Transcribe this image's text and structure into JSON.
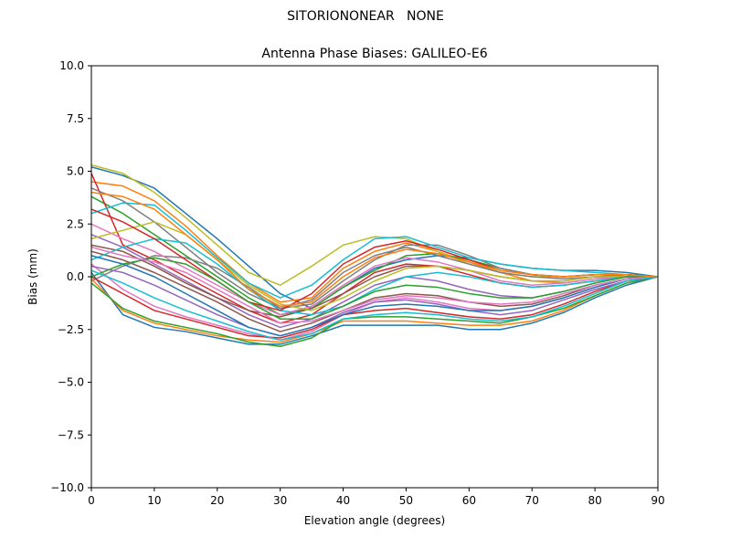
{
  "figure": {
    "suptitle": "SITORIONONEAR   NONE"
  },
  "chart_data": {
    "type": "line",
    "title": "Antenna Phase Biases: GALILEO-E6",
    "xlabel": "Elevation angle (degrees)",
    "ylabel": "Bias (mm)",
    "xlim": [
      0,
      90
    ],
    "ylim": [
      -10,
      10
    ],
    "xticks": [
      "0",
      "10",
      "20",
      "30",
      "40",
      "50",
      "60",
      "70",
      "80",
      "90"
    ],
    "yticks": [
      "10.0",
      "7.5",
      "5.0",
      "2.5",
      "0.0",
      "−2.5",
      "−5.0",
      "−7.5",
      "−10.0"
    ],
    "grid": false,
    "legend": "none",
    "x": [
      0,
      5,
      10,
      15,
      20,
      25,
      30,
      35,
      40,
      45,
      50,
      55,
      60,
      65,
      70,
      75,
      80,
      85,
      90
    ],
    "series": [
      {
        "color": "#1f77b4",
        "values": [
          5.2,
          4.8,
          4.2,
          3.0,
          1.8,
          0.5,
          -0.8,
          -1.5,
          -0.5,
          0.4,
          0.8,
          1.0,
          0.9,
          0.6,
          0.4,
          0.3,
          0.3,
          0.2,
          0.0
        ]
      },
      {
        "color": "#ff7f0e",
        "values": [
          4.5,
          4.3,
          3.6,
          2.4,
          1.0,
          -0.3,
          -1.2,
          -1.0,
          0.4,
          1.2,
          1.6,
          1.2,
          0.7,
          0.2,
          -0.2,
          -0.3,
          -0.1,
          0.1,
          0.0
        ]
      },
      {
        "color": "#2ca02c",
        "values": [
          3.8,
          3.0,
          2.0,
          1.0,
          0.0,
          -1.0,
          -1.8,
          -1.5,
          -0.5,
          0.3,
          1.0,
          1.1,
          0.8,
          0.4,
          0.1,
          0.0,
          0.1,
          0.1,
          0.0
        ]
      },
      {
        "color": "#d62728",
        "values": [
          4.9,
          1.5,
          0.8,
          0.0,
          -0.8,
          -1.6,
          -2.2,
          -1.8,
          -0.8,
          0.2,
          0.6,
          0.5,
          0.1,
          -0.3,
          -0.5,
          -0.4,
          -0.2,
          0.0,
          0.0
        ]
      },
      {
        "color": "#9467bd",
        "values": [
          2.0,
          1.4,
          0.6,
          -0.2,
          -1.0,
          -1.8,
          -2.4,
          -2.0,
          -1.2,
          -0.4,
          0.0,
          -0.2,
          -0.6,
          -0.9,
          -1.0,
          -0.7,
          -0.3,
          0.0,
          0.0
        ]
      },
      {
        "color": "#8c564b",
        "values": [
          1.2,
          0.8,
          0.2,
          -0.5,
          -1.2,
          -2.0,
          -2.6,
          -2.2,
          -1.6,
          -1.0,
          -0.8,
          -0.9,
          -1.2,
          -1.4,
          -1.3,
          -0.9,
          -0.4,
          -0.1,
          0.0
        ]
      },
      {
        "color": "#e377c2",
        "values": [
          0.6,
          -0.6,
          -1.4,
          -1.9,
          -2.3,
          -2.7,
          -3.0,
          -2.6,
          -1.8,
          -1.2,
          -1.0,
          -1.2,
          -1.5,
          -1.6,
          -1.4,
          -1.0,
          -0.5,
          -0.1,
          0.0
        ]
      },
      {
        "color": "#7f7f7f",
        "values": [
          -0.2,
          0.5,
          1.0,
          0.9,
          0.4,
          -0.5,
          -1.5,
          -1.3,
          -0.2,
          0.8,
          1.5,
          1.5,
          1.0,
          0.4,
          0.1,
          0.0,
          0.1,
          0.1,
          0.0
        ]
      },
      {
        "color": "#bcbd22",
        "values": [
          5.3,
          4.9,
          4.0,
          2.8,
          1.5,
          0.2,
          -0.4,
          0.5,
          1.5,
          1.9,
          1.8,
          1.2,
          0.6,
          0.2,
          0.0,
          0.0,
          0.1,
          0.1,
          0.0
        ]
      },
      {
        "color": "#17becf",
        "values": [
          3.0,
          3.5,
          3.4,
          2.2,
          0.9,
          -0.3,
          -1.0,
          -0.4,
          0.8,
          1.8,
          1.9,
          1.4,
          0.9,
          0.6,
          0.4,
          0.3,
          0.2,
          0.1,
          0.0
        ]
      },
      {
        "color": "#1f77b4",
        "values": [
          0.2,
          -1.8,
          -2.4,
          -2.6,
          -2.9,
          -3.2,
          -3.2,
          -2.8,
          -2.3,
          -2.3,
          -2.3,
          -2.3,
          -2.5,
          -2.5,
          -2.2,
          -1.7,
          -1.0,
          -0.4,
          0.0
        ]
      },
      {
        "color": "#ff7f0e",
        "values": [
          -0.1,
          -1.6,
          -2.2,
          -2.5,
          -2.8,
          -3.0,
          -3.1,
          -2.7,
          -2.1,
          -2.1,
          -2.1,
          -2.2,
          -2.3,
          -2.3,
          -2.1,
          -1.6,
          -0.9,
          -0.3,
          0.0
        ]
      },
      {
        "color": "#2ca02c",
        "values": [
          -0.3,
          -1.5,
          -2.1,
          -2.4,
          -2.7,
          -3.1,
          -3.3,
          -2.9,
          -2.0,
          -1.9,
          -1.9,
          -2.0,
          -2.1,
          -2.2,
          -1.9,
          -1.5,
          -0.9,
          -0.3,
          0.0
        ]
      },
      {
        "color": "#d62728",
        "values": [
          0.0,
          -0.8,
          -1.6,
          -2.0,
          -2.4,
          -2.8,
          -2.9,
          -2.5,
          -1.8,
          -1.6,
          -1.5,
          -1.7,
          -1.9,
          -2.0,
          -1.8,
          -1.3,
          -0.7,
          -0.2,
          0.0
        ]
      },
      {
        "color": "#9467bd",
        "values": [
          0.5,
          0.2,
          -0.4,
          -1.1,
          -1.8,
          -2.4,
          -2.8,
          -2.4,
          -1.7,
          -1.2,
          -1.1,
          -1.3,
          -1.6,
          -1.8,
          -1.6,
          -1.1,
          -0.6,
          -0.2,
          0.0
        ]
      },
      {
        "color": "#8c564b",
        "values": [
          1.5,
          1.2,
          0.5,
          -0.3,
          -1.0,
          -1.6,
          -1.9,
          -1.5,
          -0.8,
          0.0,
          0.5,
          0.5,
          0.3,
          0.0,
          -0.2,
          -0.2,
          0.0,
          0.0,
          0.0
        ]
      },
      {
        "color": "#e377c2",
        "values": [
          2.5,
          1.8,
          1.2,
          0.4,
          -0.4,
          -1.2,
          -1.8,
          -1.4,
          -0.4,
          0.5,
          0.9,
          0.7,
          0.3,
          -0.2,
          -0.4,
          -0.3,
          -0.1,
          0.0,
          0.0
        ]
      },
      {
        "color": "#7f7f7f",
        "values": [
          4.2,
          3.6,
          2.6,
          1.4,
          0.2,
          -0.8,
          -1.5,
          -1.1,
          0.2,
          1.0,
          1.4,
          1.0,
          0.6,
          0.2,
          0.0,
          -0.1,
          0.0,
          0.1,
          0.0
        ]
      },
      {
        "color": "#bcbd22",
        "values": [
          1.8,
          2.2,
          2.6,
          2.0,
          0.8,
          -0.4,
          -1.3,
          -1.6,
          -1.0,
          -0.2,
          0.4,
          0.5,
          0.3,
          0.0,
          -0.2,
          -0.2,
          0.0,
          0.0,
          0.0
        ]
      },
      {
        "color": "#17becf",
        "values": [
          0.8,
          1.4,
          1.8,
          1.6,
          0.6,
          -0.6,
          -1.6,
          -1.8,
          -1.4,
          -0.6,
          0.0,
          0.2,
          0.0,
          -0.3,
          -0.5,
          -0.4,
          -0.2,
          0.0,
          0.0
        ]
      },
      {
        "color": "#1f77b4",
        "values": [
          1.0,
          0.6,
          0.0,
          -0.8,
          -1.6,
          -2.4,
          -2.8,
          -2.4,
          -1.8,
          -1.4,
          -1.3,
          -1.4,
          -1.6,
          -1.6,
          -1.4,
          -1.0,
          -0.5,
          -0.1,
          0.0
        ]
      },
      {
        "color": "#d62728",
        "values": [
          3.2,
          2.6,
          1.8,
          0.8,
          -0.2,
          -1.2,
          -1.6,
          -0.8,
          0.6,
          1.4,
          1.7,
          1.3,
          0.8,
          0.3,
          0.1,
          0.0,
          0.1,
          0.1,
          0.0
        ]
      },
      {
        "color": "#2ca02c",
        "values": [
          0.0,
          0.6,
          0.9,
          0.6,
          -0.2,
          -1.2,
          -2.0,
          -2.0,
          -1.4,
          -0.7,
          -0.4,
          -0.5,
          -0.8,
          -1.0,
          -1.0,
          -0.7,
          -0.3,
          0.0,
          0.0
        ]
      },
      {
        "color": "#e377c2",
        "values": [
          1.4,
          1.0,
          0.7,
          0.2,
          -0.6,
          -1.4,
          -2.2,
          -2.1,
          -1.6,
          -1.1,
          -0.9,
          -1.0,
          -1.2,
          -1.3,
          -1.2,
          -0.8,
          -0.4,
          -0.1,
          0.0
        ]
      },
      {
        "color": "#ff7f0e",
        "values": [
          4.0,
          3.8,
          3.2,
          2.0,
          0.8,
          -0.6,
          -1.4,
          -1.2,
          0.0,
          0.9,
          1.3,
          1.1,
          0.7,
          0.3,
          0.1,
          0.0,
          0.1,
          0.1,
          0.0
        ]
      },
      {
        "color": "#17becf",
        "values": [
          0.3,
          -0.3,
          -1.0,
          -1.6,
          -2.1,
          -2.6,
          -3.0,
          -2.7,
          -2.0,
          -1.8,
          -1.7,
          -1.8,
          -2.0,
          -2.1,
          -1.9,
          -1.4,
          -0.8,
          -0.2,
          0.0
        ]
      }
    ]
  }
}
